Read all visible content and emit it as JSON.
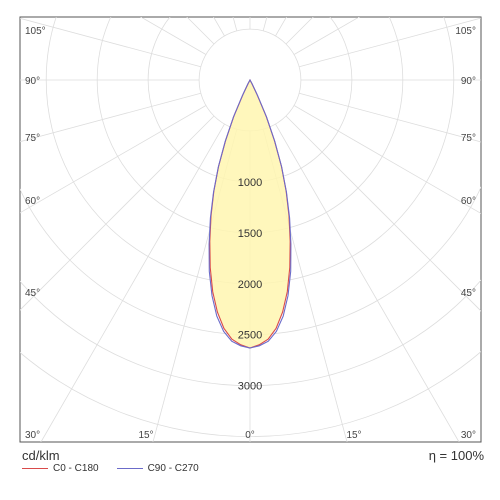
{
  "chart_data": {
    "type": "polar",
    "unit": "cd/klm",
    "efficiency": "η = 100%",
    "radial_ticks": [
      1000,
      1500,
      2000,
      2500,
      3000
    ],
    "radial_tick_labels": [
      "1000",
      "1500",
      "2000",
      "2500",
      "3000"
    ],
    "angle_labels_left": [
      "105°",
      "90°",
      "75°",
      "60°",
      "45°",
      "30°"
    ],
    "angle_labels_right": [
      "105°",
      "90°",
      "75°",
      "60°",
      "45°",
      "30°"
    ],
    "angle_labels_bottom": [
      "15°",
      "0°",
      "15°"
    ],
    "rmax": 3700,
    "series": [
      {
        "name": "C0 - C180",
        "color": "#d94a4a",
        "angles": [
          0,
          2,
          4,
          6,
          8,
          10,
          12,
          14,
          16,
          18,
          20,
          22,
          24,
          26,
          28,
          30
        ],
        "values": [
          2630,
          2600,
          2550,
          2450,
          2300,
          2110,
          1880,
          1630,
          1390,
          1150,
          900,
          640,
          390,
          160,
          40,
          0
        ]
      },
      {
        "name": "C90 - C270",
        "color": "#6b6bc9",
        "angles": [
          0,
          2,
          4,
          6,
          8,
          10,
          12,
          14,
          16,
          18,
          20,
          22,
          24,
          26,
          28,
          30
        ],
        "values": [
          2630,
          2610,
          2570,
          2480,
          2340,
          2150,
          1920,
          1660,
          1410,
          1160,
          910,
          650,
          400,
          170,
          45,
          0
        ]
      }
    ]
  }
}
